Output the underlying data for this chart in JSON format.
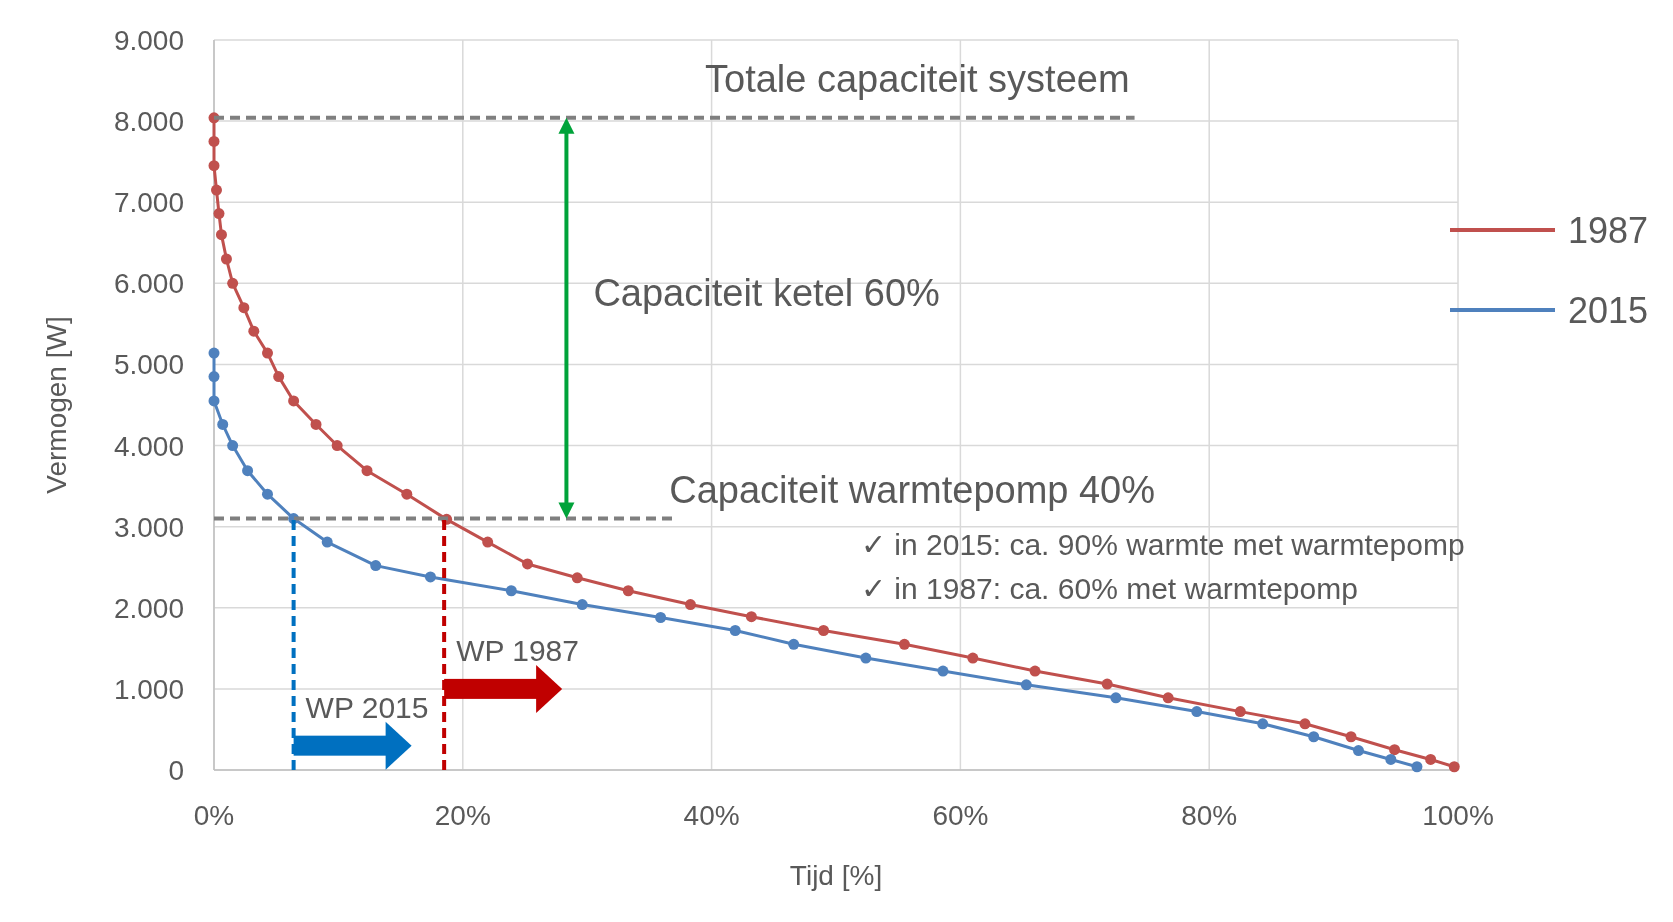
{
  "chart_data": {
    "type": "line",
    "xlabel": "Tijd [%]",
    "ylabel": "Vermogen [W]",
    "xlim": [
      0,
      100
    ],
    "ylim": [
      0,
      9000
    ],
    "xticks": [
      {
        "value": 0,
        "label": "0%"
      },
      {
        "value": 20,
        "label": "20%"
      },
      {
        "value": 40,
        "label": "40%"
      },
      {
        "value": 60,
        "label": "60%"
      },
      {
        "value": 80,
        "label": "80%"
      },
      {
        "value": 100,
        "label": "100%"
      }
    ],
    "yticks": [
      0,
      {
        "value": 1000,
        "label": "1.000"
      },
      {
        "value": 2000,
        "label": "2.000"
      },
      {
        "value": 3000,
        "label": "3.000"
      },
      {
        "value": 4000,
        "label": "4.000"
      },
      {
        "value": 5000,
        "label": "5.000"
      },
      {
        "value": 6000,
        "label": "6.000"
      },
      {
        "value": 7000,
        "label": "7.000"
      },
      {
        "value": 8000,
        "label": "8.000"
      },
      {
        "value": 9000,
        "label": "9.000"
      }
    ],
    "grid": true,
    "legend": "right",
    "marker": "circle",
    "series": [
      {
        "name": "1987",
        "color": "#c0504d",
        "x": [
          0,
          0,
          0,
          0.2,
          0.4,
          0.6,
          1.0,
          1.5,
          2.4,
          3.2,
          4.3,
          5.2,
          6.4,
          8.2,
          9.9,
          12.3,
          15.5,
          18.7,
          22,
          25.2,
          29.2,
          33.3,
          38.3,
          43.2,
          49,
          55.5,
          61,
          66,
          71.8,
          76.7,
          82.5,
          87.7,
          91.4,
          94.9,
          97.8,
          99.7
        ],
        "values": [
          8040,
          7750,
          7450,
          7150,
          6860,
          6600,
          6300,
          6000,
          5700,
          5410,
          5140,
          4850,
          4550,
          4260,
          4000,
          3690,
          3400,
          3090,
          2810,
          2540,
          2370,
          2210,
          2040,
          1890,
          1720,
          1550,
          1380,
          1220,
          1060,
          890,
          720,
          570,
          410,
          250,
          130,
          40
        ]
      },
      {
        "name": "2015",
        "color": "#4f81bd",
        "x": [
          0,
          0,
          0,
          0.7,
          1.5,
          2.7,
          4.3,
          6.4,
          9.1,
          13,
          17.4,
          23.9,
          29.6,
          35.9,
          41.9,
          46.6,
          52.4,
          58.6,
          65.3,
          72.5,
          79,
          84.3,
          88.4,
          92,
          94.6,
          96.7
        ],
        "values": [
          5140,
          4850,
          4550,
          4260,
          4000,
          3690,
          3400,
          3100,
          2810,
          2520,
          2380,
          2210,
          2040,
          1880,
          1720,
          1550,
          1380,
          1220,
          1050,
          890,
          720,
          570,
          410,
          240,
          130,
          40
        ]
      },
      {
        "type": "line",
        "color": "#7f7f7f",
        "line_style": "dashed",
        "marker": "none",
        "x": [
          0,
          74
        ],
        "values": [
          8040,
          8040
        ]
      },
      {
        "type": "line",
        "color": "#7f7f7f",
        "line_style": "dashed",
        "marker": "none",
        "x": [
          0,
          37
        ],
        "values": [
          3100,
          3100
        ]
      },
      {
        "type": "line",
        "color": "#0070c0",
        "line_style": "dashed",
        "marker": "none",
        "x": [
          6.4,
          6.4
        ],
        "values": [
          0,
          3100
        ]
      },
      {
        "type": "line",
        "color": "#c00000",
        "line_style": "dashed",
        "marker": "none",
        "x": [
          18.5,
          18.5
        ],
        "values": [
          0,
          3100
        ]
      }
    ],
    "annotations": [
      {
        "text": "Totale capaciteit systeem",
        "x": 74,
        "y": 8040
      },
      {
        "text": "Capaciteit warmtepomp 40%",
        "x": 37,
        "y": 3100
      },
      "Capaciteit ketel 60%",
      {
        "text": "WP 2015",
        "x": 6.4,
        "y": 300
      },
      {
        "text": "WP 1987",
        "x": 18.5,
        "y": 1000
      },
      "✓ in 2015: ca. 90% warmte met warmtepomp",
      "✓ in 1987: ca. 60% met warmtepomp"
    ]
  }
}
